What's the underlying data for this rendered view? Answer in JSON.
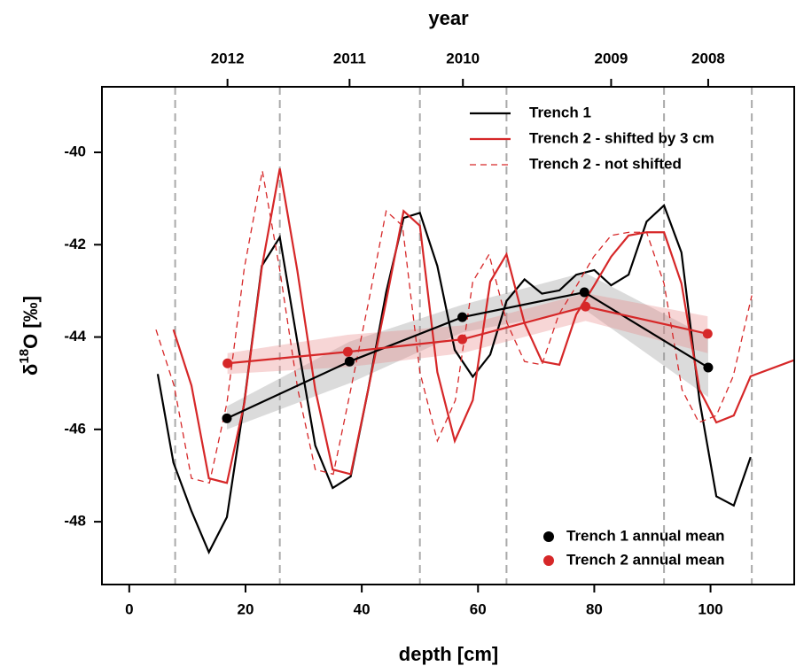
{
  "chart_data": {
    "type": "line",
    "xlabel": "depth [cm]",
    "x2label": "year",
    "ylabel_parts": [
      "δ",
      "18",
      "O [‰]"
    ],
    "xlim": [
      -4.7,
      114.4
    ],
    "ylim": [
      -49.36,
      -38.58
    ],
    "xticks": [
      0,
      20,
      40,
      60,
      80,
      100
    ],
    "yticks": [
      -48,
      -46,
      -44,
      -42,
      -40
    ],
    "x2ticks": [
      {
        "value": 16.9,
        "label": "2012"
      },
      {
        "value": 37.9,
        "label": "2011"
      },
      {
        "value": 57.4,
        "label": "2010"
      },
      {
        "value": 82.9,
        "label": "2009"
      },
      {
        "value": 99.6,
        "label": "2008"
      }
    ],
    "boundaries": [
      7.9,
      25.9,
      50,
      64.9,
      92,
      107.1
    ],
    "series": [
      {
        "name": "Trench 1",
        "color": "#000000",
        "dash": false,
        "x": [
          4.9,
          7.6,
          10.7,
          13.7,
          16.8,
          19.8,
          22.8,
          25.9,
          28.9,
          32.0,
          35.0,
          38.1,
          41.1,
          44.2,
          47.2,
          50.0,
          53.0,
          56.0,
          59.1,
          62.1,
          64.9,
          68.0,
          71.0,
          74.0,
          76.9,
          80.0,
          82.9,
          85.9,
          89.0,
          92.0,
          95.0,
          98.1,
          101.0,
          104.0,
          106.9
        ],
        "values": [
          -44.8,
          -46.72,
          -47.77,
          -48.66,
          -47.9,
          -45.4,
          -42.46,
          -41.84,
          -44.09,
          -46.35,
          -47.27,
          -47.02,
          -45.14,
          -43.03,
          -41.42,
          -41.31,
          -42.46,
          -44.28,
          -44.86,
          -44.38,
          -43.22,
          -42.75,
          -43.06,
          -42.99,
          -42.65,
          -42.55,
          -42.88,
          -42.65,
          -41.5,
          -41.15,
          -42.17,
          -45.37,
          -47.45,
          -47.65,
          -46.6
        ]
      },
      {
        "name": "Trench 2 - shifted by 3 cm",
        "color": "#d62728",
        "dash": false,
        "x": [
          7.6,
          10.7,
          13.7,
          16.8,
          19.8,
          22.8,
          25.9,
          28.9,
          32.0,
          35.0,
          38.1,
          41.1,
          44.2,
          47.2,
          50.0,
          53.0,
          56.0,
          59.1,
          62.1,
          64.9,
          68.0,
          71.0,
          74.0,
          76.9,
          80.0,
          82.9,
          85.9,
          89.0,
          92.0,
          95.0,
          98.1,
          101.0,
          104.0,
          106.9,
          114.4
        ],
        "values": [
          -43.84,
          -45.05,
          -47.06,
          -47.16,
          -45.43,
          -42.5,
          -40.35,
          -42.55,
          -45.14,
          -46.87,
          -46.97,
          -45.14,
          -43.22,
          -41.27,
          -41.59,
          -44.76,
          -46.25,
          -45.37,
          -42.8,
          -42.21,
          -43.7,
          -44.53,
          -44.6,
          -43.51,
          -42.88,
          -42.26,
          -41.8,
          -41.73,
          -41.73,
          -42.84,
          -45.14,
          -45.85,
          -45.7,
          -44.85,
          -44.5
        ]
      },
      {
        "name": "Trench 2 - not shifted",
        "color": "#d62728",
        "dash": true,
        "x": [
          4.6,
          7.7,
          10.7,
          13.8,
          16.8,
          19.8,
          22.9,
          25.9,
          29.0,
          32.0,
          35.1,
          38.1,
          41.2,
          44.2,
          47.0,
          50.0,
          53.0,
          56.1,
          59.1,
          61.9,
          65.0,
          68.0,
          71.0,
          73.9,
          77.0,
          79.9,
          82.9,
          86.0,
          89.0,
          92.0,
          95.1,
          98.0,
          101.0,
          103.9,
          107.1
        ],
        "values": [
          -43.84,
          -45.05,
          -47.06,
          -47.16,
          -45.43,
          -42.5,
          -40.4,
          -42.55,
          -45.14,
          -46.87,
          -46.97,
          -45.14,
          -43.22,
          -41.27,
          -41.59,
          -44.76,
          -46.25,
          -45.37,
          -42.8,
          -42.21,
          -43.7,
          -44.53,
          -44.6,
          -43.51,
          -42.88,
          -42.26,
          -41.8,
          -41.73,
          -41.73,
          -42.84,
          -45.14,
          -45.85,
          -45.7,
          -44.85,
          -43.1
        ]
      }
    ],
    "means": [
      {
        "name": "Trench 1 annual mean",
        "color": "#000000",
        "band_color": "#999999",
        "x": [
          16.8,
          37.9,
          57.3,
          78.3,
          99.6
        ],
        "values": [
          -45.76,
          -44.53,
          -43.57,
          -43.03,
          -44.66
        ],
        "lower": [
          -46.0,
          -45.0,
          -43.9,
          -43.4,
          -45.3
        ],
        "upper": [
          -45.5,
          -44.1,
          -43.3,
          -42.6,
          -44.0
        ]
      },
      {
        "name": "Trench 2 annual mean",
        "color": "#d62728",
        "band_color": "#e88a8a",
        "x": [
          16.9,
          37.6,
          57.3,
          78.5,
          99.5
        ],
        "values": [
          -44.57,
          -44.32,
          -44.05,
          -43.34,
          -43.93
        ],
        "lower": [
          -44.8,
          -44.65,
          -44.35,
          -43.65,
          -44.35
        ],
        "upper": [
          -44.35,
          -43.95,
          -43.75,
          -43.05,
          -43.55
        ]
      }
    ]
  }
}
